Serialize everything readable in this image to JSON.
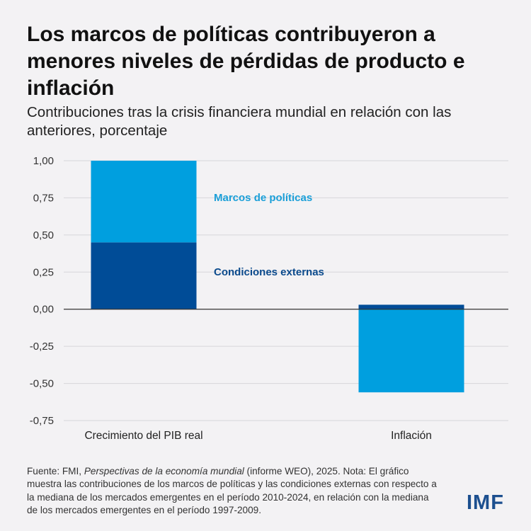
{
  "title": "Los marcos de políticas contribuyeron a menores niveles de pérdidas de producto e inflación",
  "subtitle": "Contribuciones tras la crisis financiera mundial en relación con las anteriores, porcentaje",
  "footer": {
    "prefix": "Fuente: FMI, ",
    "publication": "Perspectivas de la economía mundial",
    "rest": " (informe WEO), 2025. Nota: El gráfico muestra las contribuciones de los marcos de políticas y las condiciones externas con respecto a la mediana de los mercados emergentes en el período 2010-2024, en relación con la mediana de los mercados emergentes en el período 1997-2009."
  },
  "logo": "IMF",
  "chart_data": {
    "type": "bar",
    "stacked": true,
    "categories": [
      "Crecimiento del PIB real",
      "Inflación"
    ],
    "series": [
      {
        "name": "Condiciones externas",
        "values": [
          0.45,
          0.03
        ],
        "color": "#004c97"
      },
      {
        "name": "Marcos de políticas",
        "values": [
          0.55,
          -0.56
        ],
        "color": "#009fdf"
      }
    ],
    "ylim": [
      -0.75,
      1.0
    ],
    "yticks": [
      1.0,
      0.75,
      0.5,
      0.25,
      0.0,
      -0.25,
      -0.5,
      -0.75
    ],
    "ytick_labels": [
      "1,00",
      "0,75",
      "0,50",
      "0,25",
      "0,00",
      "-0,25",
      "-0,50",
      "-0,75"
    ],
    "grid": true,
    "legend": "inline labels next to first bar"
  }
}
